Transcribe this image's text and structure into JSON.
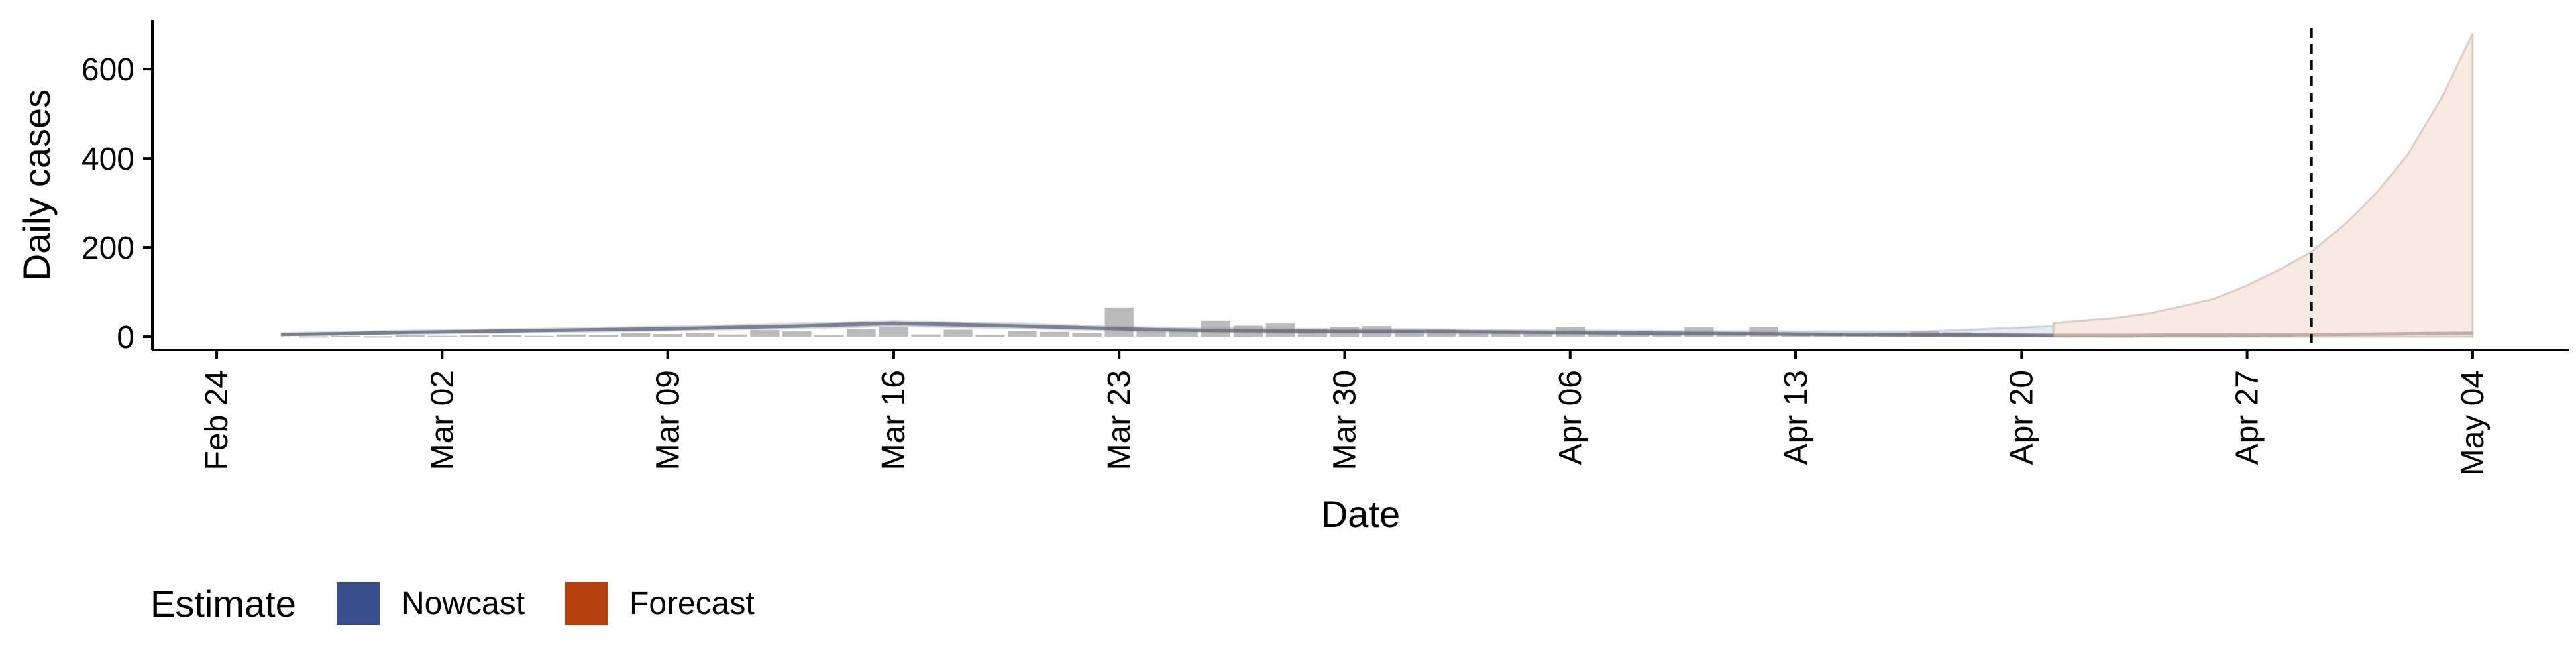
{
  "chart_data": {
    "type": "bar",
    "title": "",
    "xlabel": "Date",
    "ylabel": "Daily cases",
    "xlim": [
      "2020-02-22",
      "2020-05-07"
    ],
    "ylim": [
      -30,
      710
    ],
    "y_ticks": [
      0,
      200,
      400,
      600
    ],
    "x_ticks": [
      {
        "date": "2020-02-24",
        "label": "Feb 24"
      },
      {
        "date": "2020-03-02",
        "label": "Mar 02"
      },
      {
        "date": "2020-03-09",
        "label": "Mar 09"
      },
      {
        "date": "2020-03-16",
        "label": "Mar 16"
      },
      {
        "date": "2020-03-23",
        "label": "Mar 23"
      },
      {
        "date": "2020-03-30",
        "label": "Mar 30"
      },
      {
        "date": "2020-04-06",
        "label": "Apr 06"
      },
      {
        "date": "2020-04-13",
        "label": "Apr 13"
      },
      {
        "date": "2020-04-20",
        "label": "Apr 20"
      },
      {
        "date": "2020-04-27",
        "label": "Apr 27"
      },
      {
        "date": "2020-05-04",
        "label": "May 04"
      }
    ],
    "grid": false,
    "legend": {
      "position": "bottom-left",
      "title": "Estimate",
      "items": [
        {
          "label": "Nowcast",
          "color": "#3A4E8C"
        },
        {
          "label": "Forecast",
          "color": "#B5400D"
        }
      ]
    },
    "colors": {
      "bars": "#9e9e9e",
      "nowcast": "#3A4E8C",
      "forecast": "#B5400D",
      "forecast_band": "#f2d9cc",
      "cutoff_line": "#000000"
    },
    "cutoff_date": "2020-04-29",
    "bars": {
      "dates": [
        "2020-02-27",
        "2020-02-28",
        "2020-02-29",
        "2020-03-01",
        "2020-03-02",
        "2020-03-03",
        "2020-03-04",
        "2020-03-05",
        "2020-03-06",
        "2020-03-07",
        "2020-03-08",
        "2020-03-09",
        "2020-03-10",
        "2020-03-11",
        "2020-03-12",
        "2020-03-13",
        "2020-03-14",
        "2020-03-15",
        "2020-03-16",
        "2020-03-17",
        "2020-03-18",
        "2020-03-19",
        "2020-03-20",
        "2020-03-21",
        "2020-03-22",
        "2020-03-23",
        "2020-03-24",
        "2020-03-25",
        "2020-03-26",
        "2020-03-27",
        "2020-03-28",
        "2020-03-29",
        "2020-03-30",
        "2020-03-31",
        "2020-04-01",
        "2020-04-02",
        "2020-04-03",
        "2020-04-04",
        "2020-04-05",
        "2020-04-06",
        "2020-04-07",
        "2020-04-08",
        "2020-04-09",
        "2020-04-10",
        "2020-04-11",
        "2020-04-12",
        "2020-04-13",
        "2020-04-14",
        "2020-04-15",
        "2020-04-16",
        "2020-04-17",
        "2020-04-18",
        "2020-04-19",
        "2020-04-20",
        "2020-04-21",
        "2020-04-22",
        "2020-04-23",
        "2020-04-24",
        "2020-04-25",
        "2020-04-26",
        "2020-04-27",
        "2020-04-28"
      ],
      "values": [
        1,
        2,
        1,
        3,
        2,
        3,
        4,
        2,
        5,
        4,
        8,
        6,
        9,
        5,
        15,
        12,
        3,
        18,
        22,
        5,
        16,
        4,
        13,
        11,
        9,
        65,
        14,
        15,
        35,
        25,
        30,
        18,
        22,
        24,
        15,
        17,
        12,
        14,
        10,
        22,
        9,
        7,
        6,
        21,
        8,
        22,
        6,
        8,
        5,
        9,
        12,
        10,
        4,
        3,
        2,
        2,
        1,
        2,
        3,
        4,
        2,
        3
      ]
    },
    "series": [
      {
        "name": "Nowcast",
        "dates": [
          "2020-02-26",
          "2020-02-28",
          "2020-03-01",
          "2020-03-03",
          "2020-03-05",
          "2020-03-07",
          "2020-03-09",
          "2020-03-11",
          "2020-03-13",
          "2020-03-15",
          "2020-03-16",
          "2020-03-18",
          "2020-03-20",
          "2020-03-22",
          "2020-03-24",
          "2020-03-26",
          "2020-03-28",
          "2020-03-30",
          "2020-04-01",
          "2020-04-03",
          "2020-04-05",
          "2020-04-07",
          "2020-04-09",
          "2020-04-11",
          "2020-04-13",
          "2020-04-15",
          "2020-04-17",
          "2020-04-19",
          "2020-04-21"
        ],
        "values": [
          5,
          7,
          10,
          12,
          14,
          16,
          18,
          21,
          24,
          28,
          30,
          27,
          24,
          20,
          16,
          14,
          13,
          12,
          12,
          11,
          10,
          9,
          8,
          7,
          6,
          5,
          4,
          4,
          3
        ]
      },
      {
        "name": "Forecast",
        "dates": [
          "2020-04-21",
          "2020-04-23",
          "2020-04-25",
          "2020-04-27",
          "2020-04-29",
          "2020-05-01",
          "2020-05-04"
        ],
        "values": [
          3,
          3,
          4,
          4,
          5,
          6,
          8
        ]
      }
    ],
    "bands": [
      {
        "name": "Nowcast",
        "dates": [
          "2020-02-26",
          "2020-03-01",
          "2020-03-05",
          "2020-03-09",
          "2020-03-13",
          "2020-03-16",
          "2020-03-20",
          "2020-03-24",
          "2020-03-28",
          "2020-04-01",
          "2020-04-05",
          "2020-04-09",
          "2020-04-13",
          "2020-04-17",
          "2020-04-21"
        ],
        "lower": [
          3,
          7,
          10,
          14,
          19,
          24,
          19,
          12,
          9,
          8,
          6,
          4,
          3,
          1,
          0
        ],
        "upper": [
          8,
          14,
          18,
          23,
          29,
          34,
          29,
          21,
          18,
          17,
          15,
          13,
          12,
          12,
          24
        ]
      },
      {
        "name": "Forecast",
        "dates": [
          "2020-04-21",
          "2020-04-23",
          "2020-04-24",
          "2020-04-25",
          "2020-04-26",
          "2020-04-27",
          "2020-04-28",
          "2020-04-29",
          "2020-04-30",
          "2020-05-01",
          "2020-05-02",
          "2020-05-03",
          "2020-05-04"
        ],
        "lower": [
          0,
          0,
          0,
          0,
          0,
          0,
          0,
          0,
          0,
          0,
          0,
          0,
          0
        ],
        "upper": [
          30,
          42,
          52,
          68,
          85,
          115,
          150,
          190,
          250,
          320,
          410,
          530,
          680
        ]
      }
    ]
  }
}
